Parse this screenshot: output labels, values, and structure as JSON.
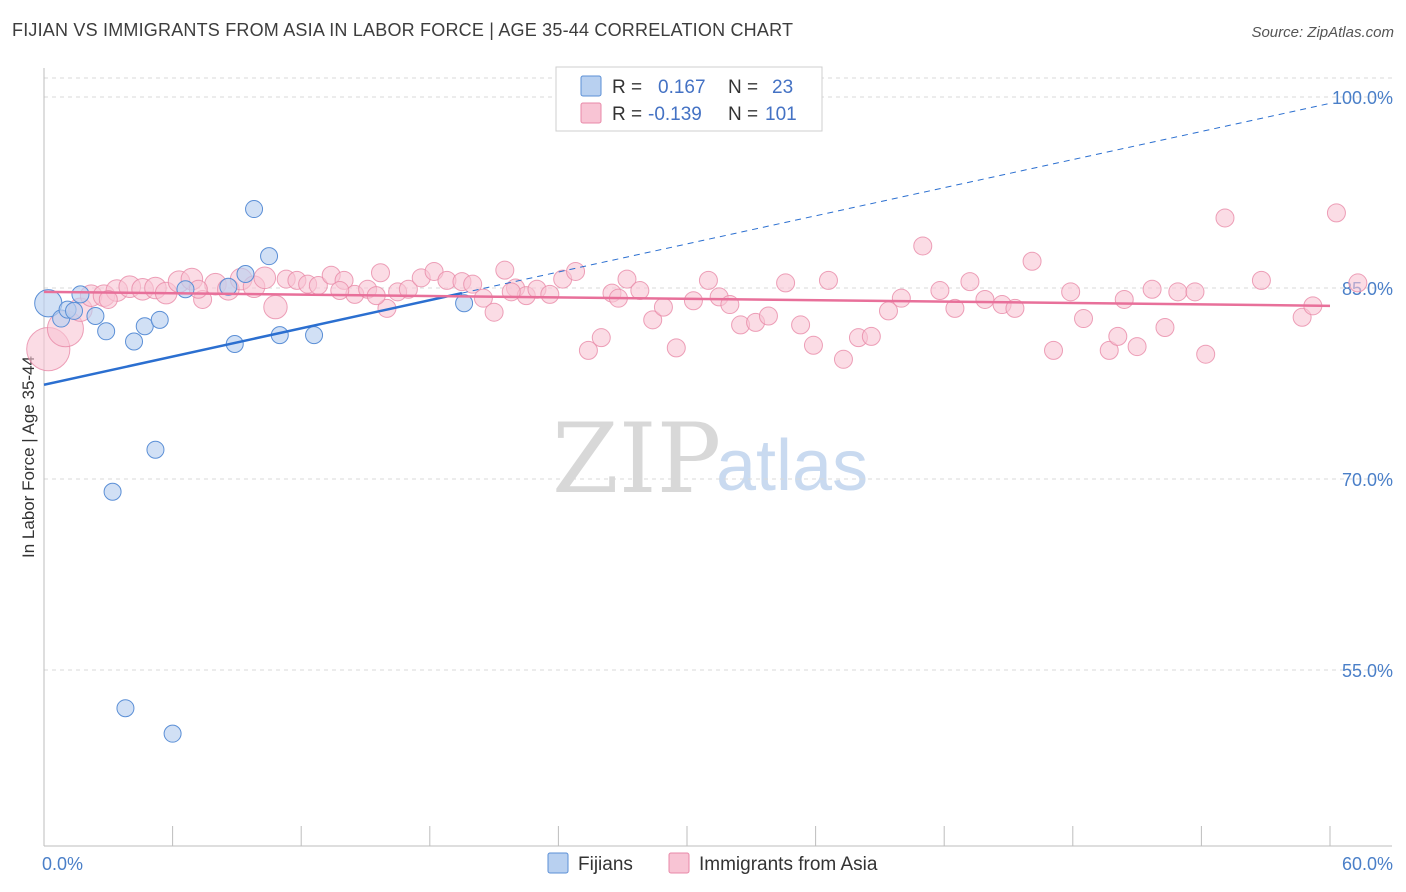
{
  "chart_data": {
    "type": "scatter",
    "title": "FIJIAN VS IMMIGRANTS FROM ASIA IN LABOR FORCE | AGE 35-44 CORRELATION CHART",
    "source": "Source: ZipAtlas.com",
    "ylabel": "In Labor Force | Age 35-44",
    "xlim": [
      0,
      60
    ],
    "ylim": [
      40,
      103
    ],
    "x_tick_labels": [
      "0.0%",
      "60.0%"
    ],
    "y_ticks": [
      {
        "value": 100,
        "label": "100.0%"
      },
      {
        "value": 85,
        "label": "85.0%"
      },
      {
        "value": 70,
        "label": "70.0%"
      },
      {
        "value": 55,
        "label": "55.0%"
      }
    ],
    "colors": {
      "fijians_fill": "#b8d0f0",
      "fijians_stroke": "#5b8fd6",
      "fijians_line": "#2b6fd0",
      "asia_fill": "#f8c4d4",
      "asia_stroke": "#e889a8",
      "asia_line": "#e8709a",
      "tick_text": "#4a7fc8"
    },
    "legend": {
      "rows": [
        {
          "r_label": "R =",
          "r_value": "0.167",
          "n_label": "N =",
          "n_value": "23"
        },
        {
          "r_label": "R =",
          "r_value": "-0.139",
          "n_label": "N =",
          "n_value": "101"
        }
      ]
    },
    "bottom_legend": [
      "Fijians",
      "Immigrants from Asia"
    ],
    "watermark": {
      "zip": "ZIP",
      "atlas": "atlas"
    },
    "trend_lines": {
      "fijians": {
        "x0": 0,
        "y0": 77.4,
        "x1": 19.5,
        "y1": 84.6,
        "dash_x1": 60,
        "dash_y1": 99.5
      },
      "asia": {
        "x0": 0,
        "y0": 84.7,
        "x1": 60,
        "y1": 83.6
      }
    },
    "series": [
      {
        "name": "Fijians",
        "points": [
          [
            0.2,
            83.8,
            1.6
          ],
          [
            0.8,
            82.6,
            1
          ],
          [
            1.1,
            83.3,
            1
          ],
          [
            1.7,
            84.5,
            1
          ],
          [
            2.4,
            82.8,
            1
          ],
          [
            2.9,
            81.6,
            1
          ],
          [
            3.2,
            69.0,
            1
          ],
          [
            3.8,
            52.0,
            1
          ],
          [
            4.2,
            80.8,
            1
          ],
          [
            4.7,
            82.0,
            1
          ],
          [
            5.2,
            72.3,
            1
          ],
          [
            5.4,
            82.5,
            1
          ],
          [
            6.0,
            50.0,
            1
          ],
          [
            6.6,
            84.9,
            1
          ],
          [
            8.6,
            85.1,
            1
          ],
          [
            8.9,
            80.6,
            1
          ],
          [
            9.4,
            86.1,
            1
          ],
          [
            9.8,
            91.2,
            1
          ],
          [
            10.5,
            87.5,
            1
          ],
          [
            11.0,
            81.3,
            1
          ],
          [
            12.6,
            81.3,
            1
          ],
          [
            19.6,
            83.8,
            1
          ],
          [
            1.4,
            83.2,
            1
          ]
        ]
      },
      {
        "name": "Immigrants from Asia",
        "points": [
          [
            0.2,
            80.2,
            2.4
          ],
          [
            1.0,
            81.8,
            2.0
          ],
          [
            1.7,
            83.3,
            1.3
          ],
          [
            2.2,
            84.4,
            1.2
          ],
          [
            2.8,
            84.4,
            1.2
          ],
          [
            3.4,
            84.8,
            1.2
          ],
          [
            4.0,
            85.1,
            1.2
          ],
          [
            4.6,
            84.9,
            1.2
          ],
          [
            5.2,
            85.0,
            1.2
          ],
          [
            5.7,
            84.6,
            1.2
          ],
          [
            6.3,
            85.5,
            1.2
          ],
          [
            6.9,
            85.7,
            1.2
          ],
          [
            7.4,
            84.1,
            1
          ],
          [
            8.0,
            85.3,
            1.2
          ],
          [
            8.6,
            84.9,
            1.2
          ],
          [
            9.2,
            85.7,
            1.2
          ],
          [
            9.8,
            85.1,
            1.2
          ],
          [
            10.3,
            85.8,
            1.2
          ],
          [
            10.8,
            83.5,
            1.3
          ],
          [
            11.3,
            85.7,
            1
          ],
          [
            11.8,
            85.6,
            1
          ],
          [
            12.3,
            85.3,
            1
          ],
          [
            12.8,
            85.2,
            1
          ],
          [
            13.4,
            86.0,
            1
          ],
          [
            14.0,
            85.6,
            1
          ],
          [
            14.5,
            84.5,
            1
          ],
          [
            15.1,
            84.9,
            1
          ],
          [
            15.7,
            86.2,
            1
          ],
          [
            16.0,
            83.4,
            1
          ],
          [
            16.5,
            84.7,
            1
          ],
          [
            17.0,
            84.9,
            1
          ],
          [
            17.6,
            85.8,
            1
          ],
          [
            18.2,
            86.3,
            1
          ],
          [
            18.8,
            85.6,
            1
          ],
          [
            19.5,
            85.5,
            1
          ],
          [
            20.0,
            85.3,
            1
          ],
          [
            20.5,
            84.2,
            1
          ],
          [
            21.0,
            83.1,
            1
          ],
          [
            21.5,
            86.4,
            1
          ],
          [
            22.0,
            85.0,
            1
          ],
          [
            22.5,
            84.4,
            1
          ],
          [
            23.0,
            84.9,
            1
          ],
          [
            23.6,
            84.5,
            1
          ],
          [
            24.2,
            85.7,
            1
          ],
          [
            24.8,
            86.3,
            1
          ],
          [
            25.4,
            80.1,
            1
          ],
          [
            26.0,
            81.1,
            1
          ],
          [
            26.5,
            84.6,
            1
          ],
          [
            27.2,
            85.7,
            1
          ],
          [
            27.8,
            84.8,
            1
          ],
          [
            28.4,
            82.5,
            1
          ],
          [
            28.9,
            83.5,
            1
          ],
          [
            29.5,
            80.3,
            1
          ],
          [
            30.3,
            84.0,
            1
          ],
          [
            31.0,
            85.6,
            1
          ],
          [
            31.5,
            84.3,
            1
          ],
          [
            32.0,
            83.7,
            1
          ],
          [
            32.5,
            82.1,
            1
          ],
          [
            33.2,
            82.3,
            1
          ],
          [
            33.8,
            82.8,
            1
          ],
          [
            34.6,
            85.4,
            1
          ],
          [
            35.3,
            82.1,
            1
          ],
          [
            35.9,
            80.5,
            1
          ],
          [
            36.6,
            85.6,
            1
          ],
          [
            37.3,
            79.4,
            1
          ],
          [
            38.0,
            81.1,
            1
          ],
          [
            38.6,
            81.2,
            1
          ],
          [
            39.4,
            83.2,
            1
          ],
          [
            40.0,
            84.2,
            1
          ],
          [
            41.0,
            88.3,
            1
          ],
          [
            41.8,
            84.8,
            1
          ],
          [
            42.5,
            83.4,
            1
          ],
          [
            43.2,
            85.5,
            1
          ],
          [
            43.9,
            84.1,
            1
          ],
          [
            44.7,
            83.7,
            1
          ],
          [
            45.3,
            83.4,
            1
          ],
          [
            46.1,
            87.1,
            1
          ],
          [
            47.1,
            80.1,
            1
          ],
          [
            47.9,
            84.7,
            1
          ],
          [
            48.5,
            82.6,
            1
          ],
          [
            49.7,
            80.1,
            1
          ],
          [
            50.1,
            81.2,
            1
          ],
          [
            50.4,
            84.1,
            1
          ],
          [
            51.0,
            80.4,
            1
          ],
          [
            51.7,
            84.9,
            1
          ],
          [
            52.3,
            81.9,
            1
          ],
          [
            52.9,
            84.7,
            1
          ],
          [
            53.7,
            84.7,
            1
          ],
          [
            54.2,
            79.8,
            1
          ],
          [
            55.1,
            90.5,
            1
          ],
          [
            56.8,
            85.6,
            1
          ],
          [
            58.7,
            82.7,
            1
          ],
          [
            59.2,
            83.6,
            1
          ],
          [
            60.3,
            90.9,
            1
          ],
          [
            61.3,
            85.4,
            1
          ],
          [
            3.0,
            84.1,
            1
          ],
          [
            7.2,
            84.9,
            1
          ],
          [
            13.8,
            84.8,
            1
          ],
          [
            15.5,
            84.4,
            1
          ],
          [
            21.8,
            84.7,
            1
          ],
          [
            26.8,
            84.2,
            1
          ]
        ]
      }
    ]
  }
}
